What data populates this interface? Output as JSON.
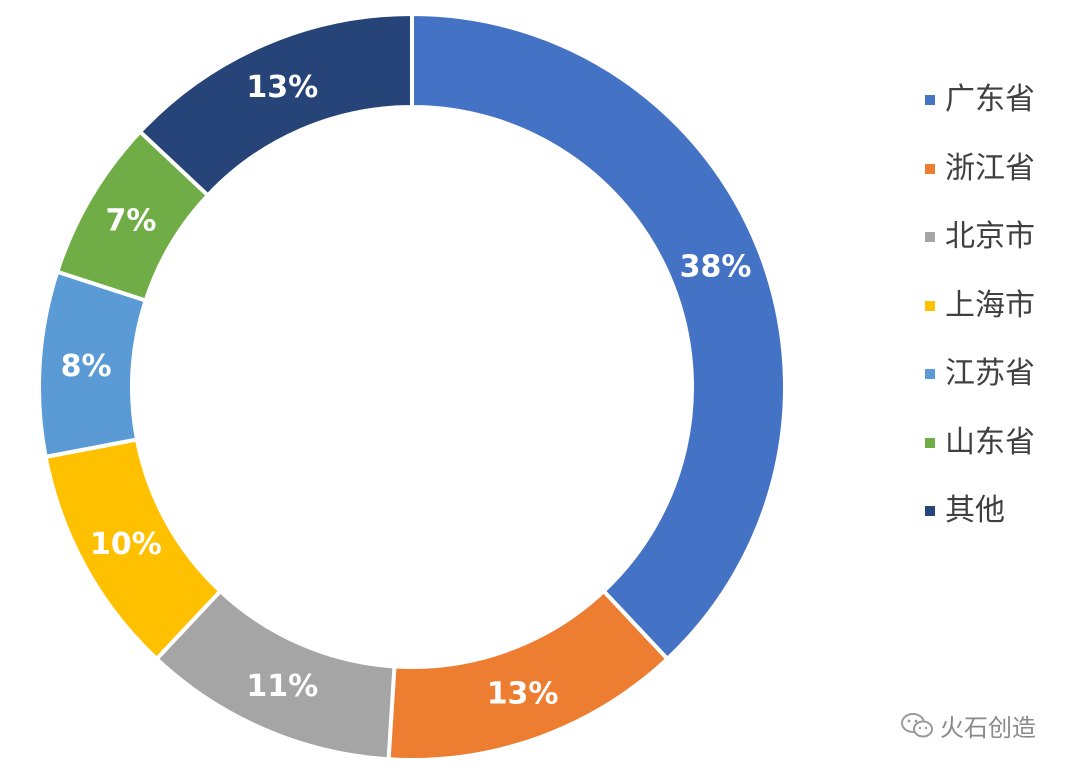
{
  "chart_data": {
    "type": "pie",
    "donut": true,
    "categories": [
      "广东省",
      "浙江省",
      "北京市",
      "上海市",
      "江苏省",
      "山东省",
      "其他"
    ],
    "values": [
      38,
      13,
      11,
      10,
      8,
      7,
      13
    ],
    "data_labels": [
      "38%",
      "13%",
      "11%",
      "10%",
      "8%",
      "7%",
      "13%"
    ],
    "colors": [
      "#4472C4",
      "#ED7D31",
      "#A5A5A5",
      "#FFC000",
      "#5B9BD5",
      "#70AD47",
      "#264478"
    ],
    "legend_position": "right",
    "start_angle_deg": 0,
    "direction": "clockwise"
  },
  "watermark": {
    "text": "火石创造",
    "icon": "wechat-icon"
  }
}
